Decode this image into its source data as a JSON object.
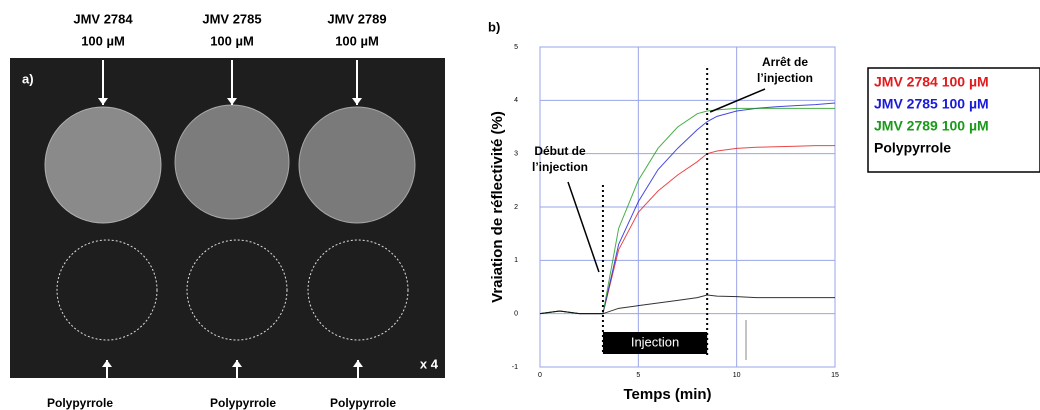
{
  "panel_a": {
    "label": "a)",
    "top_labels": [
      [
        "JMV 2784",
        "100 µM"
      ],
      [
        "JMV 2785",
        "100 µM"
      ],
      [
        "JMV 2789",
        "100 µM"
      ]
    ],
    "bottom_labels": [
      "Polypyrrole",
      "Polypyrrole",
      "Polypyrrole"
    ],
    "magnification": "x 4"
  },
  "chart_data": {
    "type": "line",
    "panel_label": "b)",
    "x_label": "Temps (min)",
    "y_label": "Vraiation de réflectivité (%)",
    "x": [
      0,
      1,
      2,
      3,
      3.2,
      4,
      5,
      6,
      7,
      8,
      8.5,
      9,
      10,
      11,
      12,
      13,
      14,
      15
    ],
    "series": [
      {
        "name": "JMV 2784 100 µM",
        "color": "#e31a1c",
        "values": [
          0,
          0.05,
          0,
          0,
          0,
          1.2,
          1.9,
          2.3,
          2.6,
          2.85,
          3.0,
          3.05,
          3.1,
          3.12,
          3.13,
          3.14,
          3.15,
          3.15
        ]
      },
      {
        "name": "JMV 2785 100 µM",
        "color": "#1a1adc",
        "values": [
          0,
          0.05,
          0,
          0,
          0,
          1.3,
          2.1,
          2.7,
          3.1,
          3.45,
          3.6,
          3.7,
          3.8,
          3.85,
          3.88,
          3.9,
          3.92,
          3.95
        ]
      },
      {
        "name": "JMV 2789 100 µM",
        "color": "#1a9a1a",
        "values": [
          0,
          0.05,
          0,
          0,
          0,
          1.6,
          2.5,
          3.1,
          3.5,
          3.75,
          3.8,
          3.82,
          3.85,
          3.85,
          3.85,
          3.85,
          3.85,
          3.85
        ]
      },
      {
        "name": "Polypyrrole",
        "color": "#000000",
        "values": [
          0,
          0.05,
          0,
          0,
          0,
          0.1,
          0.15,
          0.2,
          0.25,
          0.3,
          0.35,
          0.33,
          0.32,
          0.3,
          0.3,
          0.3,
          0.3,
          0.3
        ]
      }
    ],
    "xlim": [
      0,
      15
    ],
    "xticks": [
      0,
      5,
      10,
      15
    ],
    "ylim": [
      -1,
      5
    ],
    "yticks": [
      -1,
      0,
      1,
      2,
      3,
      4,
      5
    ],
    "grid": true,
    "events": [
      {
        "label": [
          "Début de",
          "l’injection"
        ],
        "x": 3.2
      },
      {
        "label": [
          "Arrêt de",
          "l’injection"
        ],
        "x": 8.5
      }
    ],
    "injection_label": "Injection"
  }
}
